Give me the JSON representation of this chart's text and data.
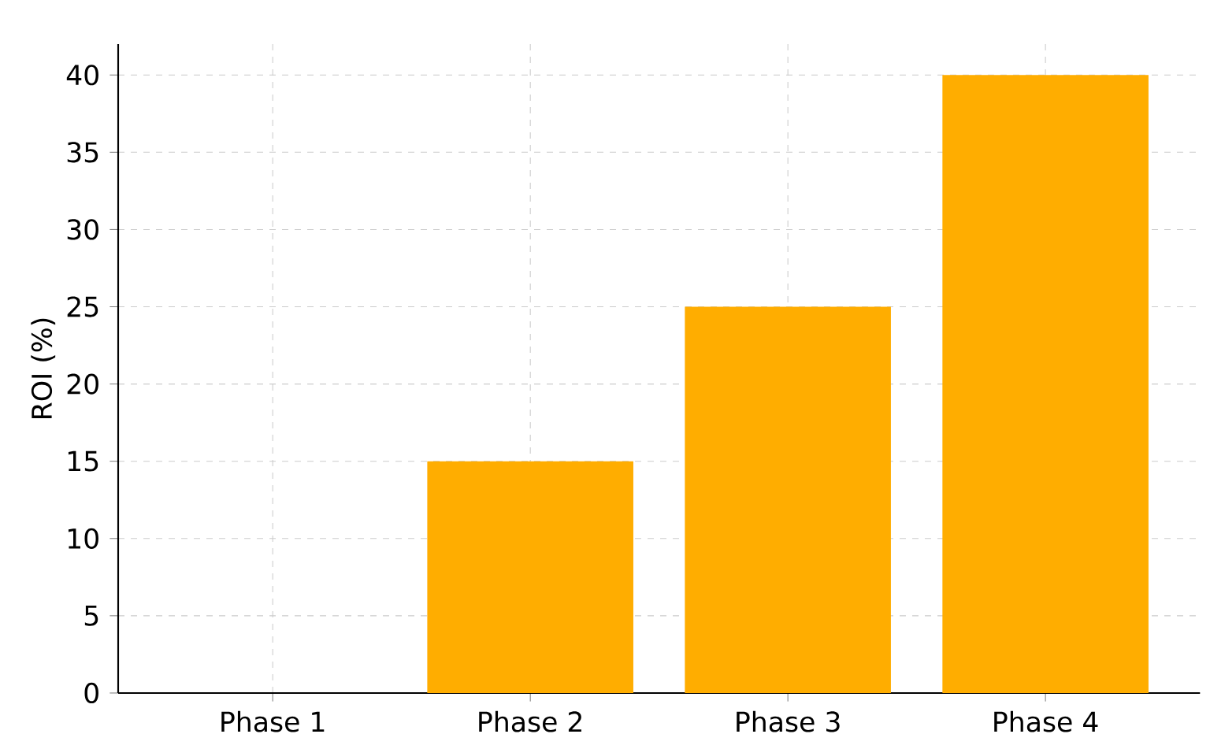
{
  "chart_data": {
    "type": "bar",
    "ylabel": "ROI (%)",
    "categories": [
      "Phase 1",
      "Phase 2",
      "Phase 3",
      "Phase 4"
    ],
    "values": [
      0,
      15,
      25,
      40
    ],
    "color": "#ffad00",
    "ylim": [
      0,
      42
    ],
    "yticks": [
      0,
      5,
      10,
      15,
      20,
      25,
      30,
      35,
      40
    ],
    "grid": true
  }
}
